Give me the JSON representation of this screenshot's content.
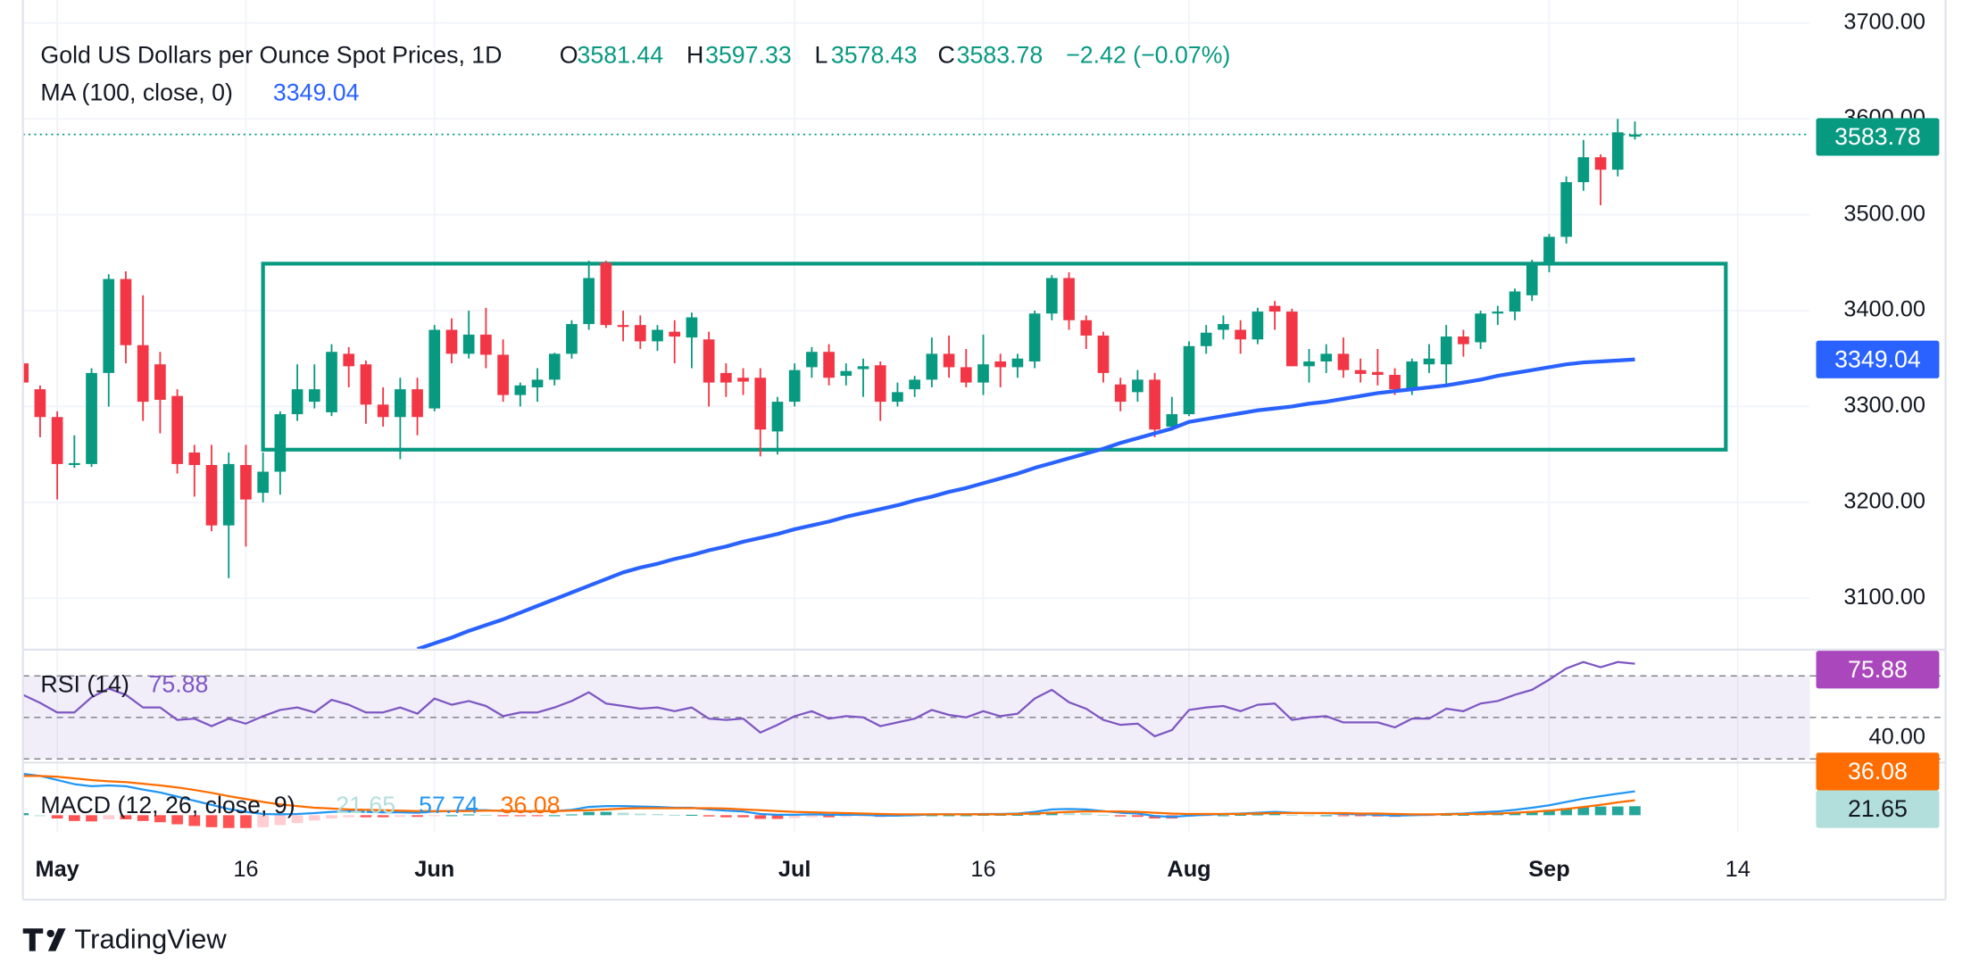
{
  "chart_data": {
    "type": "candlestick",
    "title": "Gold US Dollars per Ounce Spot Prices, 1D",
    "ohlc_labels": [
      "O",
      "H",
      "L",
      "C"
    ],
    "change_label": "−2.42 (−0.07%)",
    "up_color": "#089981",
    "down_color": "#f23645",
    "grid": true,
    "xlim": [
      0,
      104.2
    ],
    "ylim": [
      3046.5,
      3724
    ],
    "yticks": [
      {
        "value": 3100,
        "label": "3100.00"
      },
      {
        "value": 3200,
        "label": "3200.00"
      },
      {
        "value": 3300,
        "label": "3300.00"
      },
      {
        "value": 3400,
        "label": "3400.00"
      },
      {
        "value": 3500,
        "label": "3500.00"
      },
      {
        "value": 3600,
        "label": "3600.00"
      },
      {
        "value": 3700,
        "label": "3700.00"
      }
    ],
    "categories": [
      null,
      null,
      "May",
      null,
      null,
      null,
      null,
      null,
      null,
      null,
      null,
      null,
      null,
      "16",
      null,
      null,
      null,
      null,
      null,
      null,
      null,
      null,
      null,
      null,
      "Jun",
      null,
      null,
      null,
      null,
      null,
      null,
      null,
      null,
      null,
      null,
      null,
      null,
      null,
      null,
      null,
      null,
      null,
      null,
      null,
      null,
      "Jul",
      null,
      null,
      null,
      null,
      null,
      null,
      null,
      null,
      null,
      null,
      "16",
      null,
      null,
      null,
      null,
      null,
      null,
      null,
      null,
      null,
      null,
      null,
      "Aug",
      null,
      null,
      null,
      null,
      null,
      null,
      null,
      null,
      null,
      null,
      null,
      null,
      null,
      null,
      null,
      null,
      null,
      null,
      null,
      null,
      "Sep",
      null,
      null,
      null,
      null,
      null,
      null,
      null,
      null,
      null,
      null,
      "14"
    ],
    "open": [
      3345,
      3318,
      3289,
      3239,
      3240,
      3335,
      3433,
      3364,
      3344,
      3311,
      3252,
      3239,
      3176,
      3239,
      3210,
      3232,
      3292,
      3305,
      3294,
      3355,
      3344,
      3302,
      3289,
      3318,
      3298,
      3380,
      3355,
      3375,
      3354,
      3312,
      3320,
      3328,
      3355,
      3386,
      3450,
      3385,
      3385,
      3368,
      3378,
      3372,
      3370,
      3335,
      3330,
      3330,
      3274,
      3305,
      3341,
      3357,
      3332,
      3339,
      3343,
      3305,
      3318,
      3328,
      3355,
      3341,
      3325,
      3347,
      3341,
      3347,
      3397,
      3434,
      3390,
      3374,
      3323,
      3315,
      3328,
      3279,
      3292,
      3363,
      3380,
      3380,
      3370,
      3405,
      3399,
      3342,
      3347,
      3355,
      3338,
      3336,
      3333,
      3318,
      3344,
      3344,
      3373,
      3367,
      3397,
      3399,
      3416,
      3448,
      3477,
      3534,
      3560,
      3547,
      3581.44,
      null,
      null,
      null,
      null,
      null,
      null
    ],
    "high": [
      3350,
      3322,
      3295,
      3270,
      3340,
      3438,
      3441,
      3416,
      3357,
      3318,
      3260,
      3260,
      3252,
      3260,
      3252,
      3295,
      3344,
      3344,
      3365,
      3362,
      3348,
      3320,
      3330,
      3330,
      3385,
      3392,
      3400,
      3403,
      3370,
      3325,
      3340,
      3356,
      3390,
      3452,
      3452,
      3400,
      3395,
      3385,
      3390,
      3398,
      3378,
      3345,
      3340,
      3340,
      3310,
      3345,
      3362,
      3365,
      3345,
      3350,
      3347,
      3325,
      3332,
      3372,
      3374,
      3360,
      3375,
      3355,
      3355,
      3400,
      3437,
      3440,
      3395,
      3378,
      3330,
      3338,
      3335,
      3310,
      3368,
      3385,
      3395,
      3390,
      3403,
      3410,
      3402,
      3360,
      3365,
      3372,
      3350,
      3360,
      3340,
      3350,
      3365,
      3385,
      3380,
      3400,
      3405,
      3423,
      3453,
      3480,
      3540,
      3578,
      3563,
      3600,
      3597.33,
      null,
      null,
      null,
      null,
      null,
      null
    ],
    "low": [
      3322,
      3268,
      3203,
      3236,
      3237,
      3300,
      3345,
      3285,
      3272,
      3230,
      3206,
      3170,
      3121,
      3154,
      3200,
      3208,
      3285,
      3298,
      3290,
      3320,
      3282,
      3279,
      3245,
      3270,
      3295,
      3345,
      3350,
      3340,
      3305,
      3300,
      3305,
      3322,
      3350,
      3380,
      3382,
      3368,
      3360,
      3358,
      3345,
      3340,
      3300,
      3310,
      3312,
      3248,
      3250,
      3300,
      3330,
      3322,
      3322,
      3310,
      3285,
      3300,
      3310,
      3320,
      3330,
      3320,
      3312,
      3320,
      3330,
      3340,
      3390,
      3380,
      3360,
      3325,
      3295,
      3305,
      3268,
      3275,
      3290,
      3355,
      3370,
      3355,
      3365,
      3380,
      3342,
      3325,
      3335,
      3330,
      3325,
      3322,
      3312,
      3312,
      3335,
      3320,
      3352,
      3360,
      3385,
      3390,
      3410,
      3440,
      3470,
      3525,
      3510,
      3540,
      3578.43,
      null,
      null,
      null,
      null,
      null,
      null
    ],
    "close": [
      3325,
      3289,
      3240,
      3241,
      3335,
      3433,
      3364,
      3305,
      3307,
      3240,
      3239,
      3176,
      3240,
      3203,
      3232,
      3292,
      3318,
      3318,
      3357,
      3342,
      3302,
      3289,
      3318,
      3289,
      3380,
      3355,
      3375,
      3354,
      3312,
      3322,
      3328,
      3355,
      3386,
      3434,
      3385,
      3383,
      3368,
      3380,
      3373,
      3393,
      3325,
      3325,
      3326,
      3276,
      3305,
      3338,
      3357,
      3330,
      3337,
      3342,
      3305,
      3315,
      3328,
      3355,
      3341,
      3325,
      3344,
      3341,
      3350,
      3397,
      3434,
      3390,
      3374,
      3335,
      3305,
      3328,
      3276,
      3292,
      3363,
      3377,
      3386,
      3370,
      3399,
      3399,
      3342,
      3347,
      3355,
      3338,
      3334,
      3333,
      3318,
      3347,
      3350,
      3373,
      3365,
      3397,
      3399,
      3420,
      3448,
      3477,
      3534,
      3560,
      3547,
      3586,
      3583.78,
      null,
      null,
      null,
      null,
      null,
      null
    ],
    "range_box": {
      "color": "#089981",
      "top": 3449,
      "bottom": 3255,
      "start": 14,
      "end": 99.3
    },
    "ma": {
      "label": "MA (100, close, 0)",
      "color": "#2962ff",
      "values": [
        null,
        null,
        null,
        null,
        null,
        null,
        null,
        null,
        null,
        null,
        null,
        null,
        null,
        null,
        null,
        null,
        null,
        null,
        null,
        null,
        null,
        null,
        null,
        3047,
        3053,
        3059,
        3066,
        3072,
        3078,
        3085,
        3092,
        3099,
        3106,
        3113,
        3120,
        3127,
        3132,
        3136,
        3141,
        3145,
        3150,
        3154,
        3159,
        3163,
        3167,
        3172,
        3176,
        3180,
        3185,
        3189,
        3193,
        3197,
        3202,
        3206,
        3211,
        3215,
        3220,
        3225,
        3230,
        3236,
        3241,
        3246,
        3251,
        3256,
        3262,
        3267,
        3272,
        3277,
        3284,
        3287,
        3290,
        3293,
        3296,
        3298,
        3300,
        3303,
        3305,
        3308,
        3311,
        3314,
        3316,
        3318,
        3320,
        3322,
        3325,
        3328,
        3332,
        3335,
        3338,
        3341,
        3344,
        3346,
        3347,
        3348,
        3349.04,
        null,
        null,
        null,
        null,
        null,
        null
      ]
    },
    "rsi": {
      "label": "RSI (14)",
      "color": "#7e57c2",
      "band_color": "#7e57c2",
      "ylim": [
        28.2,
        82.1
      ],
      "yticks": [
        {
          "value": 40,
          "label": "40.00"
        }
      ],
      "bands": [
        30,
        70
      ],
      "midline": 50,
      "values": [
        60.9,
        57,
        52.4,
        52.4,
        59.7,
        63.9,
        60.9,
        54.8,
        54.8,
        48.8,
        49.4,
        45.8,
        49.4,
        47.0,
        50.6,
        53.6,
        54.8,
        52.4,
        58.5,
        56.1,
        52.4,
        52.4,
        54.8,
        51.8,
        59.1,
        56.1,
        57.9,
        55.5,
        50.6,
        52.4,
        52.4,
        54.8,
        57.9,
        62.1,
        56.7,
        55.5,
        54.2,
        54.8,
        53.0,
        54.8,
        49.4,
        48.8,
        49.4,
        42.7,
        46.4,
        50.6,
        53.0,
        49.4,
        50.6,
        50.0,
        45.8,
        47.6,
        49.4,
        53.6,
        51.2,
        50.0,
        53.0,
        50.6,
        51.8,
        59.1,
        63.3,
        57.3,
        54.2,
        48.8,
        46.4,
        47.0,
        40.9,
        43.9,
        53.6,
        54.8,
        55.5,
        53.0,
        56.1,
        56.7,
        48.8,
        50.0,
        50.6,
        47.6,
        47.6,
        47.6,
        45.2,
        49.4,
        49.4,
        54.2,
        53.0,
        56.7,
        57.9,
        60.9,
        63.3,
        68.2,
        73.6,
        76.7,
        74.2,
        76.7,
        75.88,
        null,
        null,
        null,
        null,
        null,
        null
      ]
    },
    "macd": {
      "label": "MACD (12, 26, close, 9)",
      "ylim": [
        -40,
        124
      ],
      "macd_line": {
        "color": "#2196f3",
        "values": [
          100,
          95,
          85,
          75,
          70,
          72,
          70,
          62,
          55,
          45,
          35,
          25,
          15,
          8,
          3,
          2,
          3,
          5,
          8,
          9,
          8,
          7,
          7,
          6,
          9,
          10,
          12,
          12,
          10,
          9,
          9,
          10,
          13,
          20,
          22,
          22,
          21,
          20,
          18,
          18,
          14,
          11,
          9,
          3,
          1,
          1,
          2,
          1,
          1,
          1,
          -1,
          -1,
          0,
          2,
          2,
          2,
          3,
          3,
          4,
          8,
          14,
          15,
          14,
          10,
          6,
          4,
          -2,
          -4,
          -1,
          1,
          3,
          4,
          6,
          8,
          6,
          5,
          5,
          3,
          2,
          1,
          -1,
          0,
          1,
          3,
          4,
          7,
          9,
          13,
          18,
          24,
          32,
          40,
          46,
          52,
          57.74,
          null,
          null,
          null,
          null,
          null,
          null
        ]
      },
      "signal_line": {
        "color": "#ff6d00",
        "values": [
          95,
          95,
          93,
          89,
          85,
          82,
          80,
          76,
          72,
          67,
          61,
          54,
          46,
          39,
          32,
          26,
          22,
          18,
          16,
          14,
          13,
          12,
          11,
          10,
          10,
          10,
          10,
          11,
          11,
          10,
          10,
          10,
          11,
          12,
          14,
          16,
          17,
          17,
          17,
          17,
          17,
          16,
          14,
          12,
          10,
          8,
          7,
          6,
          5,
          4,
          3,
          2,
          2,
          2,
          2,
          2,
          2,
          2,
          3,
          4,
          6,
          8,
          9,
          9,
          9,
          8,
          6,
          4,
          3,
          3,
          3,
          3,
          4,
          5,
          5,
          5,
          5,
          5,
          4,
          4,
          3,
          2,
          2,
          2,
          3,
          3,
          4,
          6,
          8,
          11,
          15,
          20,
          25,
          31,
          36.08,
          null,
          null,
          null,
          null,
          null,
          null
        ]
      },
      "histogram": {
        "rising_positive": "#26a69a",
        "falling_positive": "#b2dfdb",
        "falling_negative": "#ff5252",
        "rising_negative": "#ffcdd2",
        "values": [
          5,
          0,
          -8,
          -14,
          -15,
          -10,
          -10,
          -14,
          -17,
          -22,
          -26,
          -29,
          -31,
          -31,
          -29,
          -24,
          -19,
          -13,
          -8,
          -5,
          -5,
          -5,
          -4,
          -4,
          -1,
          0,
          2,
          1,
          -1,
          -1,
          -1,
          0,
          2,
          8,
          8,
          6,
          4,
          3,
          1,
          1,
          -3,
          -5,
          -5,
          -9,
          -9,
          -7,
          -5,
          -5,
          -4,
          -3,
          -4,
          -3,
          -2,
          0,
          0,
          0,
          1,
          1,
          1,
          4,
          8,
          7,
          5,
          1,
          -3,
          -4,
          -8,
          -8,
          -4,
          -2,
          0,
          1,
          2,
          3,
          1,
          0,
          0,
          -2,
          -2,
          -3,
          -4,
          -2,
          -1,
          1,
          1,
          4,
          5,
          7,
          10,
          13,
          17,
          20,
          21,
          21,
          21.65,
          null,
          null,
          null,
          null,
          null,
          null
        ]
      }
    },
    "brand": "TradingView"
  }
}
